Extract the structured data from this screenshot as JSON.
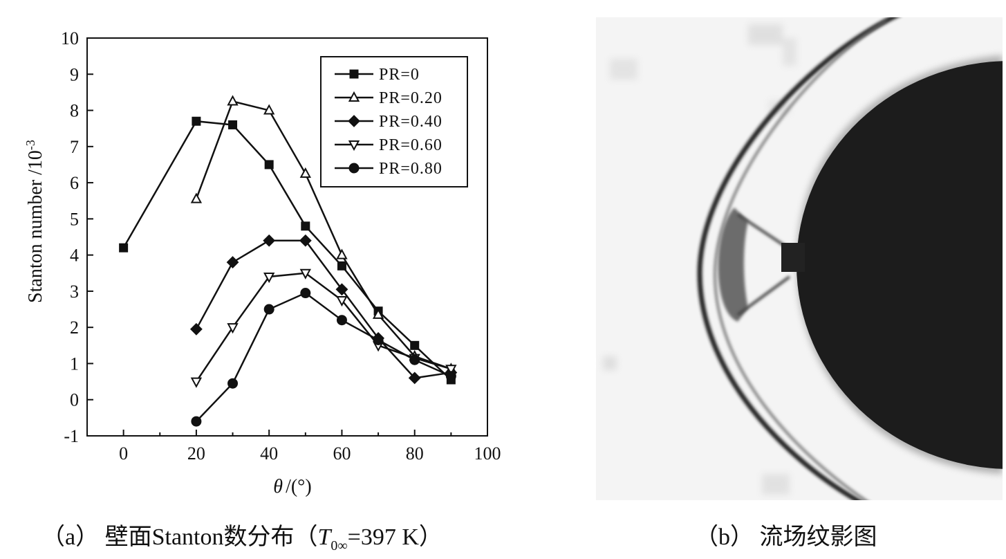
{
  "chart_data": {
    "type": "line",
    "xlabel_symbol": "θ",
    "xlabel_unit": "/(°)",
    "ylabel": "Stanton number /10",
    "ylabel_exp": "-3",
    "xlim": [
      -10,
      100
    ],
    "ylim": [
      -1,
      10
    ],
    "xticks": [
      0,
      20,
      40,
      60,
      80,
      100
    ],
    "yticks": [
      -1,
      0,
      1,
      2,
      3,
      4,
      5,
      6,
      7,
      8,
      9,
      10
    ],
    "grid": false,
    "legend_position": "top-right",
    "series": [
      {
        "name": "PR=0",
        "marker": "square",
        "x": [
          0,
          20,
          30,
          40,
          50,
          60,
          70,
          80,
          90
        ],
        "y": [
          4.2,
          7.7,
          7.6,
          6.5,
          4.8,
          3.7,
          2.45,
          1.5,
          0.55
        ]
      },
      {
        "name": "PR=0.20",
        "marker": "triangle-up-open",
        "x": [
          20,
          30,
          40,
          50,
          60,
          70,
          80,
          90
        ],
        "y": [
          5.55,
          8.25,
          8.0,
          6.25,
          4.0,
          2.35,
          1.2,
          0.85
        ]
      },
      {
        "name": "PR=0.40",
        "marker": "diamond",
        "x": [
          20,
          30,
          40,
          50,
          60,
          70,
          80,
          90
        ],
        "y": [
          1.95,
          3.8,
          4.4,
          4.4,
          3.05,
          1.7,
          0.6,
          0.75
        ]
      },
      {
        "name": "PR=0.60",
        "marker": "triangle-down-open",
        "x": [
          20,
          30,
          40,
          50,
          60,
          70,
          80,
          90
        ],
        "y": [
          0.5,
          2.0,
          3.4,
          3.5,
          2.75,
          1.5,
          1.15,
          0.85
        ]
      },
      {
        "name": "PR=0.80",
        "marker": "circle",
        "x": [
          20,
          30,
          40,
          50,
          60,
          70,
          80,
          90
        ],
        "y": [
          -0.6,
          0.45,
          2.5,
          2.95,
          2.2,
          1.65,
          1.1,
          0.65
        ]
      }
    ]
  },
  "captions": {
    "a_prefix": "（a）  壁面Stanton数分布（",
    "a_T": "T",
    "a_sub": "0∞",
    "a_suffix": "=397 K）",
    "b_text": "（b）  流场纹影图"
  },
  "colors": {
    "ink": "#111111",
    "photo_bg": "#f4f4f4",
    "photo_dark": "#1c1c1c"
  }
}
